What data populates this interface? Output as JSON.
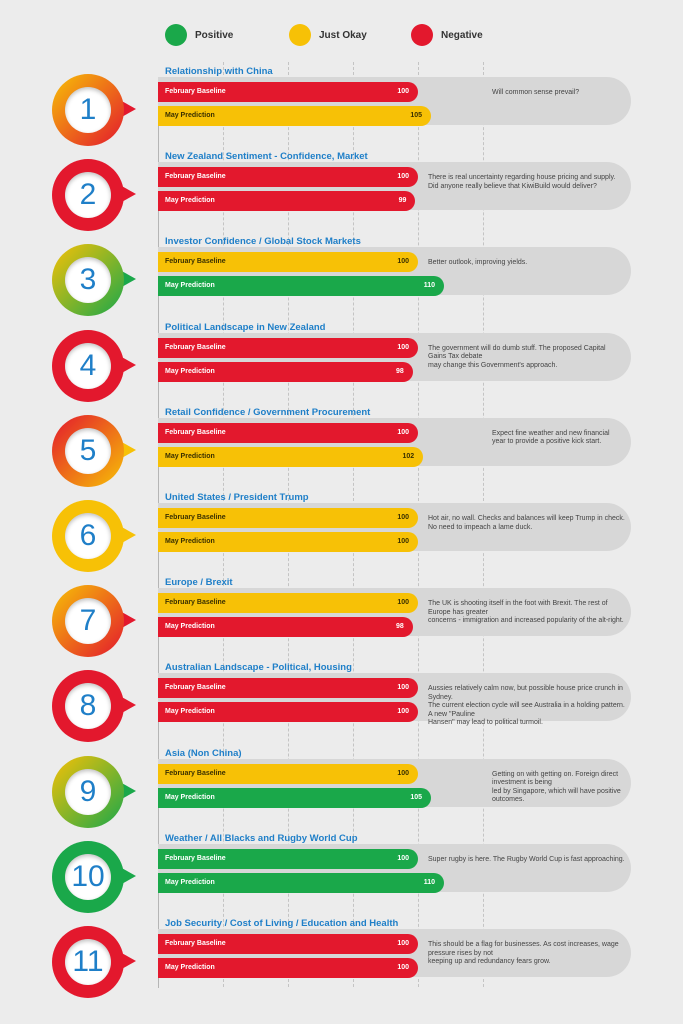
{
  "colors": {
    "Positive": "#1aa84a",
    "Just Okay": "#f7c106",
    "Negative": "#e3182d"
  },
  "legend": [
    {
      "label": "Positive",
      "rating": "Positive"
    },
    {
      "label": "Just Okay",
      "rating": "Just Okay"
    },
    {
      "label": "Negative",
      "rating": "Negative"
    }
  ],
  "chart_data": {
    "type": "bar",
    "orientation": "horizontal",
    "grid": true,
    "xlim": [
      0,
      140
    ],
    "series_names": [
      "February Baseline",
      "May Prediction"
    ],
    "legend_position": "top",
    "sections": [
      {
        "number": "1",
        "title": "Relationship with China",
        "february": {
          "label": "February Baseline",
          "value": 100,
          "rating": "Negative"
        },
        "may": {
          "label": "May Prediction",
          "value": 105,
          "rating": "Just Okay"
        },
        "note": "Will common sense prevail?",
        "marker_gradient": [
          "#f7c106",
          "#e3182d"
        ]
      },
      {
        "number": "2",
        "title": "New Zealand Sentiment - Confidence, Market",
        "february": {
          "label": "February Baseline",
          "value": 100,
          "rating": "Negative"
        },
        "may": {
          "label": "May Prediction",
          "value": 99,
          "rating": "Negative"
        },
        "note": "There is real uncertainty regarding house pricing and supply.\nDid anyone really believe that KiwiBuild would deliver?",
        "marker_gradient": [
          "#e3182d",
          "#e3182d"
        ]
      },
      {
        "number": "3",
        "title": "Investor Confidence / Global Stock Markets",
        "february": {
          "label": "February Baseline",
          "value": 100,
          "rating": "Just Okay"
        },
        "may": {
          "label": "May Prediction",
          "value": 110,
          "rating": "Positive"
        },
        "note": "Better outlook, improving yields.",
        "marker_gradient": [
          "#f7c106",
          "#1aa84a"
        ]
      },
      {
        "number": "4",
        "title": "Political Landscape in New Zealand",
        "february": {
          "label": "February Baseline",
          "value": 100,
          "rating": "Negative"
        },
        "may": {
          "label": "May Prediction",
          "value": 98,
          "rating": "Negative"
        },
        "note": "The government will do dumb stuff. The proposed Capital Gains Tax debate\nmay change this Government's approach.",
        "marker_gradient": [
          "#e3182d",
          "#e3182d"
        ]
      },
      {
        "number": "5",
        "title": "Retail Confidence / Government Procurement",
        "february": {
          "label": "February Baseline",
          "value": 100,
          "rating": "Negative"
        },
        "may": {
          "label": "May Prediction",
          "value": 102,
          "rating": "Just Okay"
        },
        "note": "Expect fine weather and new financial year to provide a positive kick start.",
        "marker_gradient": [
          "#e3182d",
          "#f7c106"
        ]
      },
      {
        "number": "6",
        "title": "United States / President Trump",
        "february": {
          "label": "February Baseline",
          "value": 100,
          "rating": "Just Okay"
        },
        "may": {
          "label": "May Prediction",
          "value": 100,
          "rating": "Just Okay"
        },
        "note": "Hot air, no wall. Checks and balances will keep Trump in check.\nNo need to impeach a lame duck.",
        "marker_gradient": [
          "#f7c106",
          "#f7c106"
        ]
      },
      {
        "number": "7",
        "title": "Europe / Brexit",
        "february": {
          "label": "February Baseline",
          "value": 100,
          "rating": "Just Okay"
        },
        "may": {
          "label": "May Prediction",
          "value": 98,
          "rating": "Negative"
        },
        "note": "The UK is shooting itself in the foot with Brexit. The rest of Europe has greater\nconcerns - immigration and increased popularity of the alt-right.",
        "marker_gradient": [
          "#f7c106",
          "#e3182d"
        ]
      },
      {
        "number": "8",
        "title": "Australian Landscape - Political, Housing",
        "february": {
          "label": "February Baseline",
          "value": 100,
          "rating": "Negative"
        },
        "may": {
          "label": "May Prediction",
          "value": 100,
          "rating": "Negative"
        },
        "note": "Aussies relatively calm now, but possible house price crunch in Sydney.\nThe current election cycle will see Australia in a holding pattern. A new \"Pauline\nHansen\" may lead to political turmoil.",
        "marker_gradient": [
          "#e3182d",
          "#e3182d"
        ]
      },
      {
        "number": "9",
        "title": "Asia (Non China)",
        "february": {
          "label": "February Baseline",
          "value": 100,
          "rating": "Just Okay"
        },
        "may": {
          "label": "May Prediction",
          "value": 105,
          "rating": "Positive"
        },
        "note": "Getting on with getting on. Foreign direct investment is being\nled by Singapore, which will have positive outcomes.",
        "marker_gradient": [
          "#f7c106",
          "#1aa84a"
        ]
      },
      {
        "number": "10",
        "title": "Weather / All Blacks and Rugby World Cup",
        "february": {
          "label": "February Baseline",
          "value": 100,
          "rating": "Positive"
        },
        "may": {
          "label": "May Prediction",
          "value": 110,
          "rating": "Positive"
        },
        "note": "Super rugby is here. The Rugby World Cup is fast approaching.",
        "marker_gradient": [
          "#1aa84a",
          "#1aa84a"
        ]
      },
      {
        "number": "11",
        "title": "Job Security / Cost of Living / Education and Health",
        "february": {
          "label": "February Baseline",
          "value": 100,
          "rating": "Negative"
        },
        "may": {
          "label": "May Prediction",
          "value": 100,
          "rating": "Negative"
        },
        "note": "This should be a flag for businesses. As cost increases, wage pressure rises by not\nkeeping up and redundancy fears grow.",
        "marker_gradient": [
          "#e3182d",
          "#e3182d"
        ]
      }
    ]
  }
}
